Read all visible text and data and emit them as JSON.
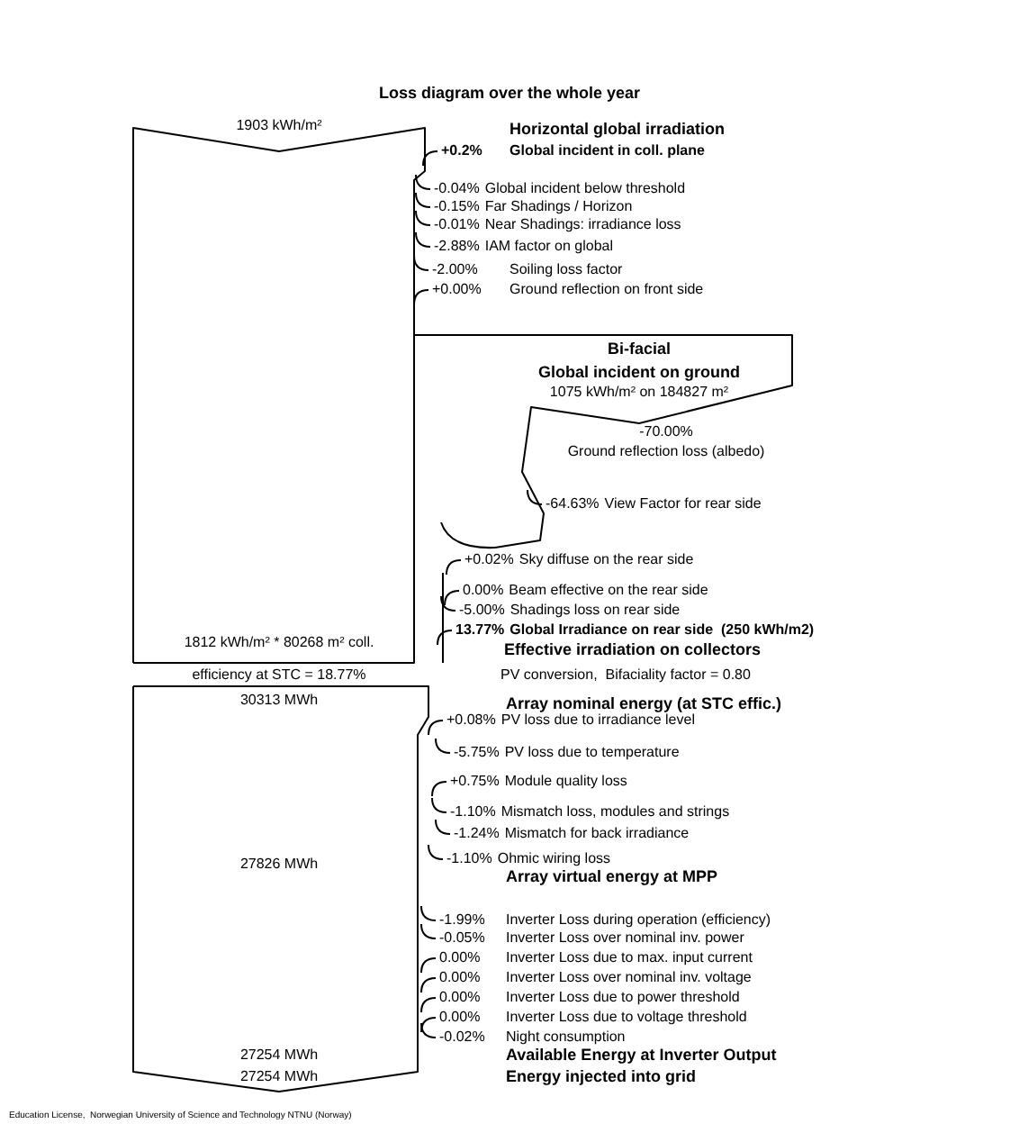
{
  "chart_data": {
    "type": "other",
    "title": "Loss diagram over the whole year",
    "categories": [
      "Global incident in coll. plane",
      "Global incident below threshold",
      "Far Shadings / Horizon",
      "Near Shadings: irradiance loss",
      "IAM factor on global",
      "Soiling loss factor",
      "Ground reflection on front side",
      "Ground reflection loss (albedo)",
      "View Factor for rear side",
      "Sky diffuse on the rear side",
      "Beam effective on the rear side",
      "Shadings loss on rear side",
      "Global Irradiance on rear side  (250 kWh/m2)",
      "PV loss due to irradiance level",
      "PV loss due to temperature",
      "Module quality loss",
      "Mismatch loss, modules and strings",
      "Mismatch for back irradiance",
      "Ohmic wiring loss",
      "Inverter Loss during operation (efficiency)",
      "Inverter Loss over nominal inv. power",
      "Inverter Loss due to max. input current",
      "Inverter Loss over nominal inv. voltage",
      "Inverter Loss due to power threshold",
      "Inverter Loss due to voltage threshold",
      "Night consumption"
    ],
    "values": [
      0.2,
      -0.04,
      -0.15,
      -0.01,
      -2.88,
      -2.0,
      0.0,
      -70.0,
      -64.63,
      0.02,
      0.0,
      -5.0,
      13.77,
      0.08,
      -5.75,
      0.75,
      -1.1,
      -1.24,
      -1.1,
      -1.99,
      -0.05,
      0.0,
      0.0,
      0.0,
      0.0,
      -0.02
    ],
    "value_labels": [
      "+0.2%",
      "-0.04%",
      "-0.15%",
      "-0.01%",
      "-2.88%",
      "-2.00%",
      "+0.00%",
      "-70.00%",
      "-64.63%",
      "+0.02%",
      "0.00%",
      "-5.00%",
      "13.77%",
      "+0.08%",
      "-5.75%",
      "+0.75%",
      "-1.10%",
      "-1.24%",
      "-1.10%",
      "-1.99%",
      "-0.05%",
      "0.00%",
      "0.00%",
      "0.00%",
      "0.00%",
      "-0.02%"
    ],
    "annotations": [
      "1903 kWh/m²",
      "Horizontal global irradiation",
      "Bi-facial",
      "Global incident on ground",
      "1075 kWh/m² on 184827 m²",
      "Effective irradiation on collectors",
      "1812 kWh/m² * 80268 m² coll.",
      "efficiency at STC = 18.77%",
      "PV conversion,  Bifaciality factor = 0.80",
      "30313 MWh",
      "Array nominal energy (at STC effic.)",
      "27826 MWh",
      "Array virtual energy at MPP",
      "27254 MWh",
      "Available Energy at Inverter Output",
      "27254 MWh",
      "Energy injected into grid",
      "Education License,  Norwegian University of Science and Technology NTNU (Norway)"
    ]
  }
}
